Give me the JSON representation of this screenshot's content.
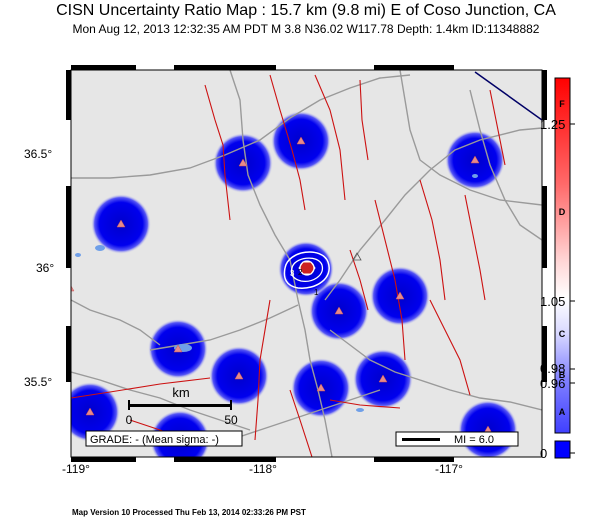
{
  "header": {
    "title": "CISN Uncertainty Ratio Map : 15.7 km (9.8 mi) E of Coso Junction, CA",
    "subtitle": "Mon Aug 12, 2013 12:32:35 AM PDT   M 3.8    N36.02 W117.78   Depth: 1.4km    ID:11348882"
  },
  "axes": {
    "lat_labels": [
      "36.5°",
      "36°",
      "35.5°"
    ],
    "lon_labels": [
      "-119°",
      "-118°",
      "-117°"
    ]
  },
  "map": {
    "scale_bar": {
      "unit": "km",
      "start": "0",
      "end": "50"
    },
    "grade_text": "GRADE: - (Mean sigma: -)",
    "mi_text": "MI = 6.0",
    "contour_labels": [
      "1",
      "2",
      "3"
    ],
    "stations": [
      "sta1",
      "sta2",
      "sta3",
      "sta4",
      "sta5",
      "sta6",
      "sta7",
      "sta8",
      "sta9",
      "sta10",
      "sta11",
      "sta12",
      "sta13",
      "sta14"
    ]
  },
  "colorbar": {
    "letters": [
      "F",
      "D",
      "C",
      "B",
      "A"
    ],
    "values": [
      "1.25",
      "1.05",
      "0.98",
      "0.96",
      "0"
    ],
    "colors": {
      "top": "#ff0000",
      "mid": "#ffffff",
      "bottom": "#0000ff"
    }
  },
  "footer": {
    "text": "Map Version 10 Processed Thu Feb 13, 2014 02:33:26 PM PST"
  }
}
